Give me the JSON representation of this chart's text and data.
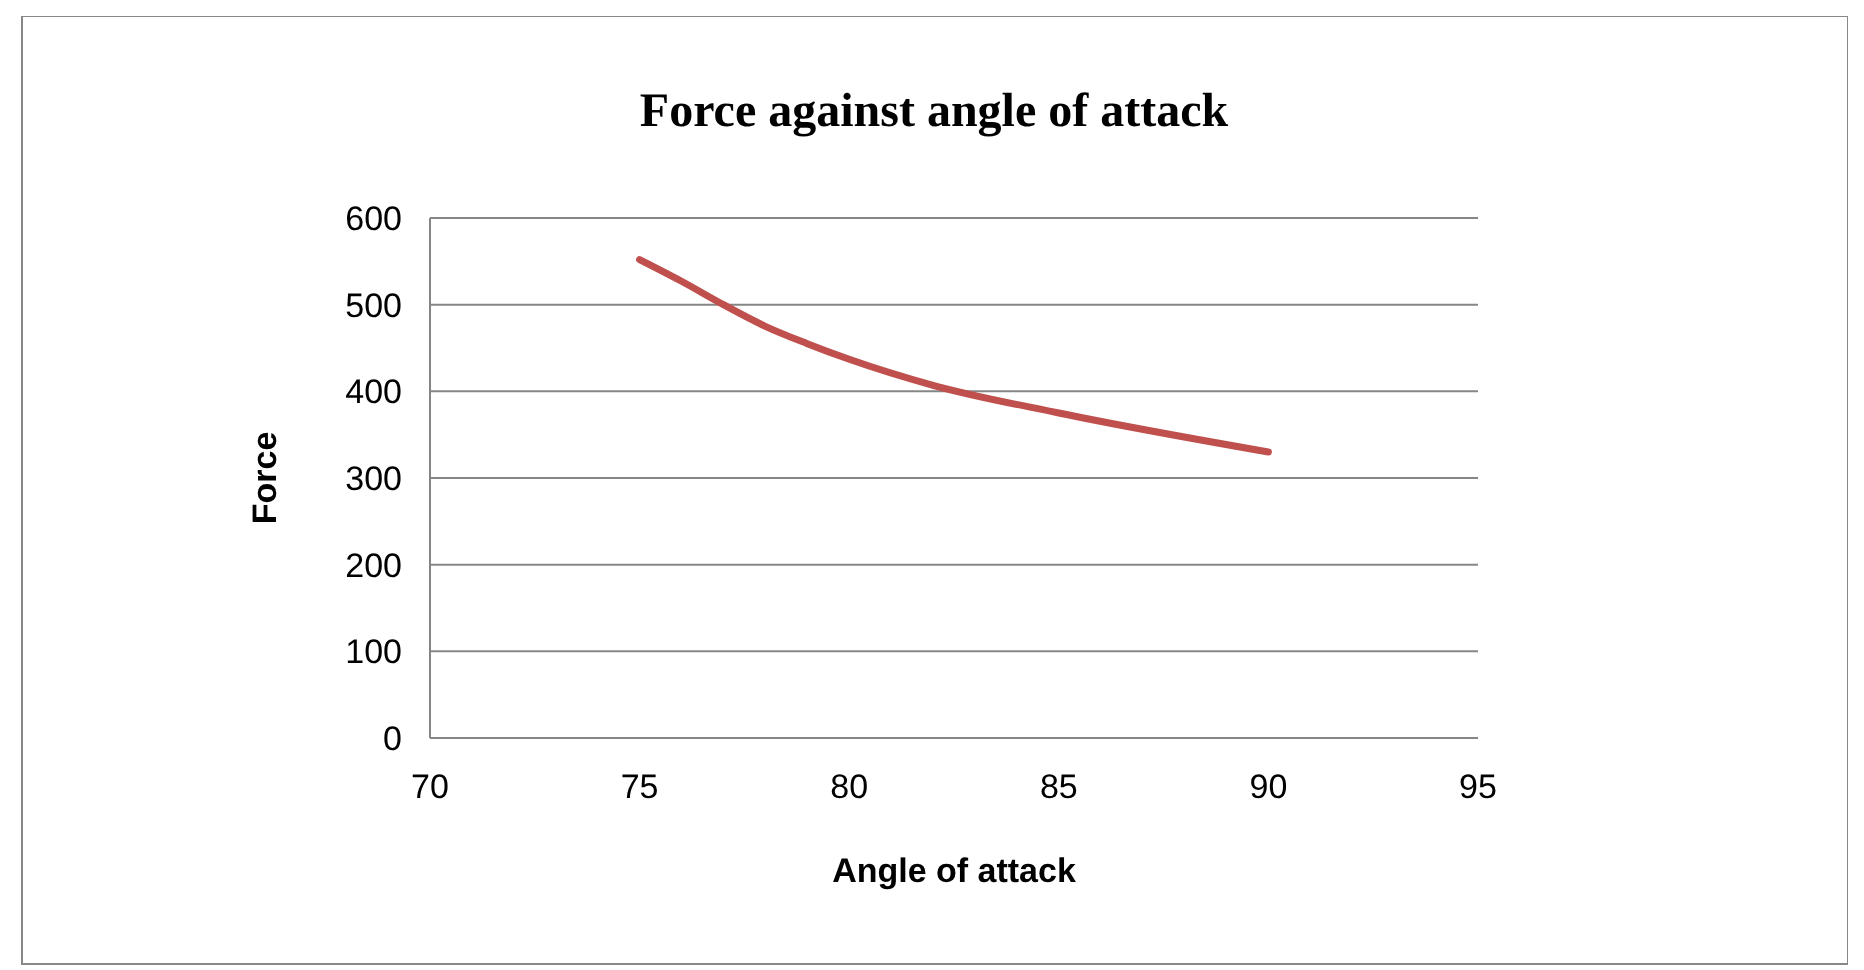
{
  "chart_data": {
    "type": "line",
    "title": "Force against angle of attack",
    "xlabel": "Angle of attack",
    "ylabel": "Force",
    "x": [
      75,
      76,
      77,
      78,
      79,
      80,
      82,
      85,
      90
    ],
    "series": [
      {
        "color": "#c0504d",
        "values": [
          552,
          527,
          500,
          475,
          455,
          437,
          407,
          375,
          330
        ]
      }
    ],
    "xlim": [
      70,
      95
    ],
    "xticks": [
      70,
      75,
      80,
      85,
      90,
      95
    ],
    "ylim": [
      0,
      600
    ],
    "yticks": [
      0,
      100,
      200,
      300,
      400,
      500,
      600
    ],
    "grid": "y",
    "marker": "none",
    "line_style": "solid"
  }
}
